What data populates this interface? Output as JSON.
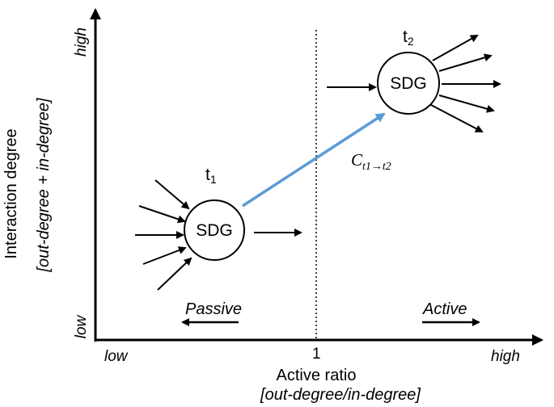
{
  "diagram": {
    "y_axis": {
      "title": "Interaction degree",
      "subtitle": "[out-degree + in-degree]",
      "high_label": "high",
      "low_label": "low"
    },
    "x_axis": {
      "title": "Active ratio",
      "subtitle": "[out-degree/in-degree]",
      "low_label": "low",
      "high_label": "high",
      "midpoint_label": "1"
    },
    "regions": {
      "passive_label": "Passive",
      "active_label": "Active"
    },
    "nodes": {
      "t1": {
        "label": "SDG",
        "time_main": "t",
        "time_sub": "1",
        "incoming_edges": 5,
        "outgoing_edges": 1
      },
      "t2": {
        "label": "SDG",
        "time_main": "t",
        "time_sub": "2",
        "incoming_edges": 1,
        "outgoing_edges": 5
      }
    },
    "transition": {
      "label_main": "C",
      "label_sub": "t1→t2",
      "color": "#5b9bd5"
    }
  }
}
